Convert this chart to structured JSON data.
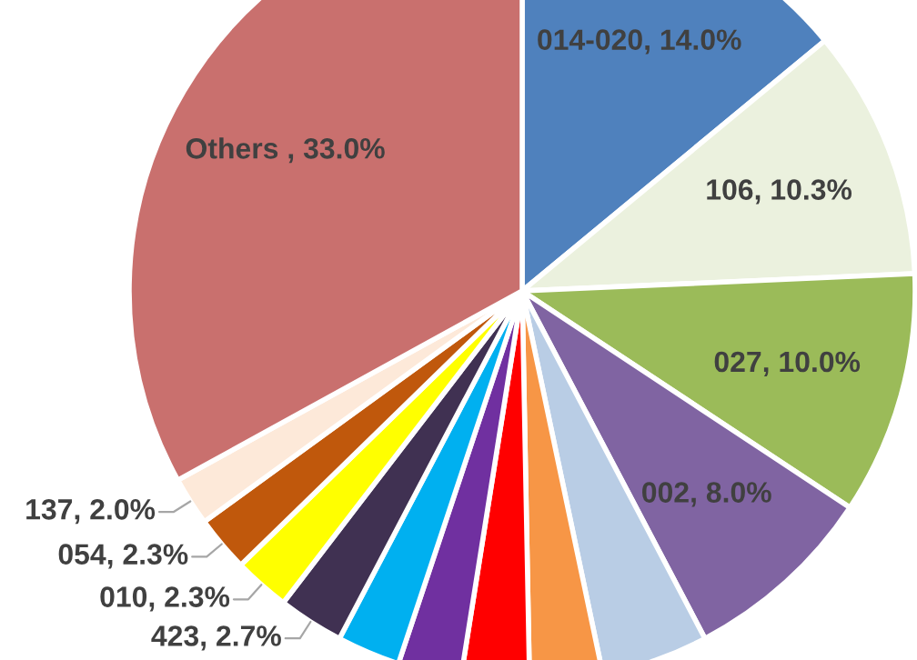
{
  "chart_data": {
    "type": "pie",
    "categories": [
      "014-020",
      "106",
      "027",
      "002",
      null,
      null,
      null,
      null,
      null,
      "423",
      "010",
      "054",
      "137",
      "Others "
    ],
    "values": [
      14.0,
      10.3,
      10.0,
      8.0,
      4.4,
      3.0,
      2.8,
      2.6,
      2.6,
      2.7,
      2.3,
      2.3,
      2.0,
      33.0
    ],
    "value_labels": [
      ", 14.0%",
      ", 10.3%",
      ", 10.0%",
      ", 8.0%",
      null,
      null,
      null,
      null,
      null,
      ", 2.7%",
      ", 2.3%",
      ", 2.3%",
      ", 2.0%",
      ", 33.0%"
    ],
    "colors": [
      "#4f81bd",
      "#ebf1de",
      "#9bbb59",
      "#8064a2",
      "#b9cde5",
      "#f79646",
      "#ff0000",
      "#7030a0",
      "#00b0f0",
      "#403152",
      "#ffff00",
      "#c0580c",
      "#fde9d9",
      "#c9706e"
    ],
    "legend": false
  }
}
